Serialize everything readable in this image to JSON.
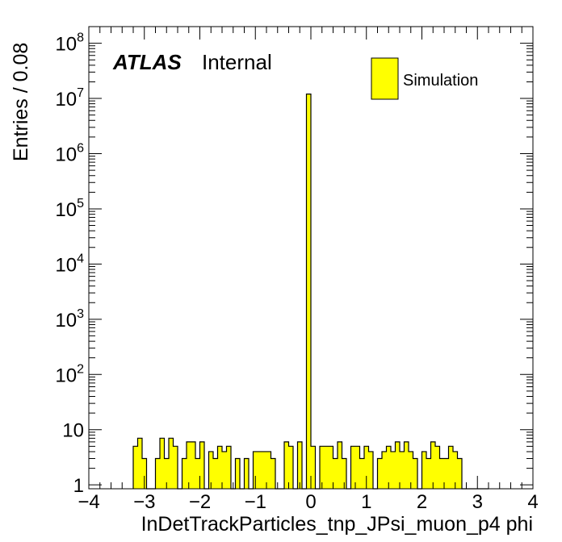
{
  "chart_data": {
    "type": "bar",
    "xlabel": "InDetTrackParticles_tnp_JPsi_muon_p4 phi",
    "ylabel": "Entries / 0.08",
    "xlim": [
      -4,
      4
    ],
    "ylim": [
      0.85,
      200000000
    ],
    "yscale": "log",
    "bin_width": 0.08,
    "bin_start": -3.2,
    "atlas_label": "ATLAS",
    "atlas_sublabel": "Internal",
    "legend": [
      {
        "name": "Simulation",
        "color": "#ffff00"
      }
    ],
    "legend_position": "top-right",
    "fill_color": "#ffff00",
    "x_ticks": [
      "−4",
      "−3",
      "−2",
      "−1",
      "0",
      "1",
      "2",
      "3",
      "4"
    ],
    "x_tick_values": [
      -4,
      -3,
      -2,
      -1,
      0,
      1,
      2,
      3,
      4
    ],
    "y_ticks": [
      {
        "value": 1,
        "base": "1",
        "exp": ""
      },
      {
        "value": 10,
        "base": "10",
        "exp": ""
      },
      {
        "value": 100,
        "base": "10",
        "exp": "2"
      },
      {
        "value": 1000,
        "base": "10",
        "exp": "3"
      },
      {
        "value": 10000,
        "base": "10",
        "exp": "4"
      },
      {
        "value": 100000,
        "base": "10",
        "exp": "5"
      },
      {
        "value": 1000000,
        "base": "10",
        "exp": "6"
      },
      {
        "value": 10000000,
        "base": "10",
        "exp": "7"
      },
      {
        "value": 100000000,
        "base": "10",
        "exp": "8"
      }
    ],
    "values": [
      5,
      7,
      3,
      0,
      0,
      3,
      7,
      3,
      7,
      5,
      0,
      3,
      6,
      6,
      3,
      6,
      0,
      4,
      3,
      5,
      4,
      5,
      0,
      3,
      0,
      3,
      0,
      4,
      4,
      4,
      4,
      3,
      0,
      0,
      6,
      5,
      0,
      6,
      0,
      12000000,
      5,
      0,
      5,
      5,
      5,
      3,
      6,
      3,
      0,
      5,
      5,
      3,
      5,
      4,
      0,
      3,
      4,
      5,
      4,
      6,
      4,
      6,
      4,
      3,
      0,
      4,
      3,
      6,
      5,
      3,
      3,
      5,
      4,
      3,
      0,
      0,
      0,
      0,
      0,
      0
    ]
  }
}
